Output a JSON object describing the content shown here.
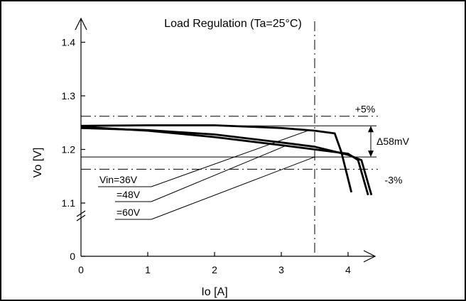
{
  "chart_data": {
    "type": "line",
    "title": "Load Regulation (Ta=25°C)",
    "xlabel": "Io [A]",
    "ylabel": "Vo [V]",
    "xlim": [
      0,
      4.4
    ],
    "ylim": [
      1.0,
      1.45
    ],
    "y_axis_break": true,
    "x_ticks": [
      0,
      1,
      2,
      3,
      4
    ],
    "y_ticks": [
      {
        "value": 1.0,
        "label": "0"
      },
      {
        "value": 1.1,
        "label": "1.1"
      },
      {
        "value": 1.2,
        "label": "1.2"
      },
      {
        "value": 1.3,
        "label": "1.3"
      },
      {
        "value": 1.4,
        "label": "1.4"
      }
    ],
    "grid": false,
    "legend": "none",
    "series": [
      {
        "name": "Vin=36V",
        "x": [
          0,
          1,
          2,
          3,
          3.5,
          3.8,
          3.9,
          4.05
        ],
        "y": [
          1.244,
          1.245,
          1.245,
          1.24,
          1.235,
          1.23,
          1.195,
          1.12
        ]
      },
      {
        "name": "=48V",
        "x": [
          0,
          1,
          2,
          3,
          3.5,
          4,
          4.15,
          4.3
        ],
        "y": [
          1.242,
          1.235,
          1.223,
          1.208,
          1.2,
          1.192,
          1.18,
          1.115
        ]
      },
      {
        "name": "=60V",
        "x": [
          0,
          1,
          2,
          3,
          3.5,
          4,
          4.2,
          4.35
        ],
        "y": [
          1.24,
          1.236,
          1.228,
          1.213,
          1.205,
          1.19,
          1.18,
          1.115
        ]
      }
    ],
    "reference_lines": [
      {
        "type": "dashed",
        "y": 1.262,
        "label": "+5%"
      },
      {
        "type": "dashed",
        "y": 1.163,
        "label": "-3%"
      },
      {
        "type": "dashed",
        "x": 3.5
      },
      {
        "type": "solid",
        "y": 1.244
      },
      {
        "type": "solid",
        "y": 1.186
      }
    ],
    "annotations": {
      "delta": "Δ58mV",
      "series_labels": [
        "Vin=36V",
        "=48V",
        "=60V"
      ]
    }
  }
}
